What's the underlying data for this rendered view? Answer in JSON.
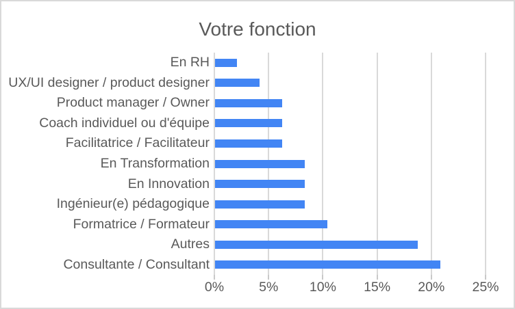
{
  "chart_data": {
    "type": "bar",
    "orientation": "horizontal",
    "title": "Votre fonction",
    "categories": [
      "En RH",
      "UX/UI designer / product designer",
      "Product manager / Owner",
      "Coach individuel ou d'équipe",
      "Facilitatrice / Facilitateur",
      "En Transformation",
      "En Innovation",
      "Ingénieur(e) pédagogique",
      "Formatrice / Formateur",
      "Autres",
      "Consultante / Consultant"
    ],
    "values": [
      2.08,
      4.17,
      6.25,
      6.25,
      6.25,
      8.33,
      8.33,
      8.33,
      10.42,
      18.75,
      20.83
    ],
    "value_unit": "%",
    "xlabel": "",
    "ylabel": "",
    "xlim": [
      0,
      25
    ],
    "x_ticks": [
      {
        "value": 0,
        "label": "0%"
      },
      {
        "value": 5,
        "label": "5%"
      },
      {
        "value": 10,
        "label": "10%"
      },
      {
        "value": 15,
        "label": "15%"
      },
      {
        "value": 20,
        "label": "20%"
      },
      {
        "value": 25,
        "label": "25%"
      }
    ],
    "grid": true,
    "legend_position": "none",
    "colors": {
      "bar": "#4285F4",
      "gridline": "#D9D9D9",
      "tick": "#C9C9C9",
      "text": "#595959",
      "border": "#D9D9D9",
      "background": "#FFFFFF"
    }
  }
}
